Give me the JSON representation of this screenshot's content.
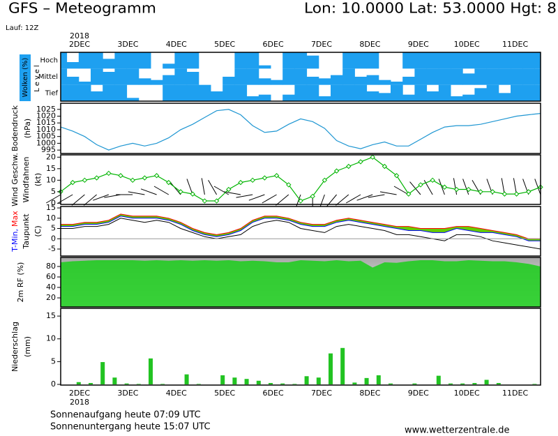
{
  "header": {
    "title": "GFS – Meteogramm",
    "location": "Lon: 10.0000 Lat: 53.0000 Hgt: 8",
    "run": "Lauf: 12Z"
  },
  "time_axis": {
    "year": "2018",
    "days": [
      "2DEC",
      "3DEC",
      "4DEC",
      "5DEC",
      "6DEC",
      "7DEC",
      "8DEC",
      "9DEC",
      "10DEC",
      "11DEC"
    ]
  },
  "footer": {
    "sunrise": "Sonnenaufgang heute 07:09 UTC",
    "sunset": "Sonnenuntergang heute 15:07 UTC",
    "url": "www.wetterzentrale.de"
  },
  "chart_data": [
    {
      "type": "cloud",
      "ylabel": "Wolken (%)",
      "ylabel2": "Level",
      "color": "#1ea0f0",
      "series": [
        {
          "name": "Hoch",
          "values": [
            100,
            40,
            100,
            100,
            60,
            100,
            100,
            100,
            0,
            30,
            100,
            100,
            0,
            0,
            0,
            100,
            100,
            20,
            0,
            100,
            100,
            80,
            0,
            0,
            100,
            100,
            100,
            0,
            0,
            100,
            100,
            100,
            100,
            100,
            100,
            100,
            100,
            100,
            100,
            100,
            100
          ]
        },
        {
          "name": "Mittel",
          "values": [
            100,
            50,
            20,
            100,
            80,
            100,
            100,
            40,
            30,
            60,
            100,
            80,
            0,
            0,
            50,
            100,
            100,
            40,
            30,
            100,
            100,
            50,
            40,
            60,
            100,
            50,
            60,
            30,
            20,
            50,
            100,
            100,
            100,
            100,
            70,
            100,
            100,
            100,
            100,
            100,
            100
          ]
        },
        {
          "name": "Tief",
          "values": [
            100,
            100,
            100,
            60,
            100,
            100,
            20,
            0,
            0,
            100,
            100,
            100,
            100,
            60,
            100,
            100,
            30,
            40,
            0,
            40,
            100,
            100,
            30,
            100,
            100,
            100,
            60,
            50,
            100,
            40,
            100,
            60,
            100,
            30,
            40,
            80,
            100,
            50,
            100,
            100,
            100
          ]
        }
      ]
    },
    {
      "type": "line",
      "ylabel": [
        "Bodendruck",
        "(hPa)"
      ],
      "color": "#1e96d2",
      "values": [
        1012,
        1009,
        1005,
        999,
        995,
        998,
        1000,
        998,
        1000,
        1004,
        1010,
        1014,
        1019,
        1024,
        1025,
        1021,
        1013,
        1008,
        1009,
        1014,
        1018,
        1016,
        1011,
        1002,
        998,
        996,
        999,
        1001,
        998,
        998,
        1003,
        1008,
        1012,
        1013,
        1013,
        1014,
        1016,
        1018,
        1020,
        1021,
        1022
      ],
      "ylim": [
        992.5,
        1029.5
      ],
      "yticks": [
        995,
        1000,
        1005,
        1010,
        1015,
        1020,
        1025
      ]
    },
    {
      "type": "wind",
      "ylabel": [
        "Windfahnen",
        "(kt)"
      ],
      "series": [
        {
          "name": "Wind Geschw.",
          "color": "#00b400",
          "values": [
            5,
            9,
            10,
            11,
            13,
            12,
            10,
            11,
            12,
            9,
            5,
            4,
            1,
            1,
            6,
            9,
            10,
            11,
            12,
            8,
            1,
            3,
            10,
            14,
            16,
            18,
            20,
            16,
            12,
            4,
            8,
            10,
            7,
            6,
            6,
            5,
            5,
            4,
            4,
            5,
            7
          ]
        }
      ],
      "directions": [
        240,
        240,
        230,
        230,
        250,
        260,
        270,
        280,
        290,
        300,
        320,
        340,
        350,
        330,
        300,
        280,
        260,
        250,
        240,
        230,
        200,
        180,
        200,
        220,
        230,
        240,
        250,
        260,
        280,
        300,
        320,
        330,
        340,
        350,
        340,
        330,
        340,
        350,
        350,
        340,
        340
      ],
      "ylim": [
        -0.5,
        21
      ],
      "yticks": [
        0,
        5,
        10,
        15,
        20
      ]
    },
    {
      "type": "temperature",
      "ylabel": "(C)",
      "fill_color": "#66cc00",
      "zero_line": true,
      "series": [
        {
          "name": "T-Min,",
          "color": "#0000ff",
          "values": [
            6,
            6,
            7,
            7,
            8,
            11,
            10,
            10,
            10,
            9,
            7,
            4,
            2,
            1,
            2,
            4,
            8,
            10,
            10,
            9,
            7,
            6,
            6,
            8,
            9,
            8,
            7,
            6,
            5,
            4,
            4,
            3,
            3,
            5,
            4,
            3,
            3,
            2,
            1,
            -1,
            -1
          ]
        },
        {
          "name": "Max",
          "color": "#ff0000",
          "values": [
            7,
            7,
            8,
            8,
            9,
            12,
            11,
            11,
            11,
            10,
            8,
            5,
            3,
            2,
            3,
            5,
            9,
            11,
            11,
            10,
            8,
            7,
            7,
            9,
            10,
            9,
            8,
            7,
            6,
            6,
            5,
            5,
            5,
            6,
            6,
            5,
            4,
            3,
            2,
            0,
            0
          ]
        },
        {
          "name": "Taupunkt",
          "color": "#000000",
          "values": [
            5,
            5,
            6,
            6,
            7,
            10,
            9,
            8,
            9,
            8,
            5,
            3,
            1,
            0,
            1,
            2,
            6,
            8,
            9,
            8,
            5,
            4,
            3,
            6,
            7,
            6,
            5,
            4,
            2,
            2,
            1,
            0,
            -1,
            2,
            2,
            1,
            -1,
            -2,
            -3,
            -4,
            -5
          ]
        }
      ],
      "ylim": [
        -8.4,
        15.7
      ],
      "yticks": [
        -5,
        0,
        5,
        10,
        15
      ]
    },
    {
      "type": "area",
      "series": [
        {
          "name": "2m RF (%)",
          "color": "#22cc22",
          "values": [
            88,
            90,
            91,
            92,
            92,
            92,
            92,
            91,
            92,
            91,
            92,
            91,
            92,
            91,
            92,
            90,
            91,
            90,
            88,
            88,
            92,
            91,
            90,
            92,
            90,
            91,
            78,
            88,
            87,
            90,
            92,
            92,
            90,
            90,
            92,
            91,
            90,
            90,
            88,
            85,
            80
          ]
        }
      ],
      "ylim": [
        2.7,
        97.3
      ],
      "yticks": [
        20,
        40,
        60,
        80
      ]
    },
    {
      "type": "bar",
      "ylabel": [
        "Niederschlag",
        "(mm)"
      ],
      "color": "#22c322",
      "values": [
        0,
        0.5,
        0.3,
        4.9,
        1.5,
        0.2,
        0.1,
        5.7,
        0.1,
        0,
        2.2,
        0.1,
        0,
        2.0,
        1.5,
        1.2,
        0.8,
        0.3,
        0.2,
        0.1,
        1.8,
        1.5,
        6.8,
        8.0,
        0.4,
        1.4,
        2.0,
        0.2,
        0,
        0.2,
        0,
        1.9,
        0.2,
        0.2,
        0.3,
        1.0,
        0.3,
        0,
        0,
        0.1
      ],
      "ylim": [
        -0.15,
        16.7
      ],
      "yticks": [
        0,
        5,
        10,
        15
      ]
    }
  ]
}
